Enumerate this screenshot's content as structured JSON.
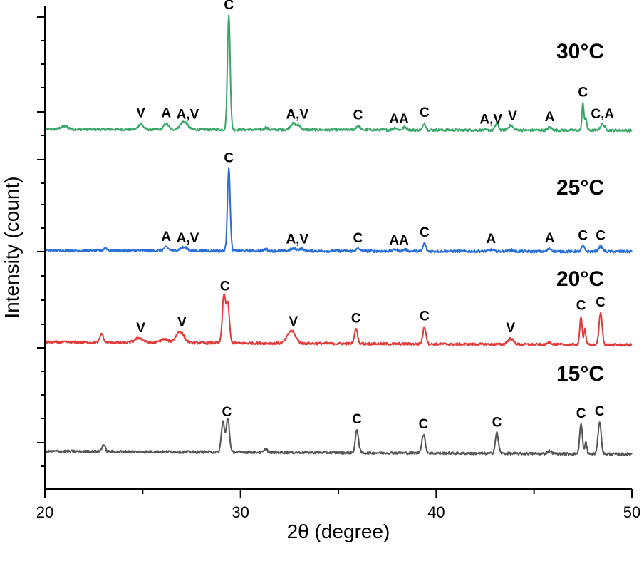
{
  "chart_data": {
    "type": "line",
    "xlabel": "2θ (degree)",
    "ylabel": "Intensity (count)",
    "xlim": [
      20,
      50
    ],
    "xticks": [
      20,
      30,
      40,
      50
    ],
    "y_units": "stacked, arbitrary offsets (top trace 0-100)",
    "series": [
      {
        "name": "30°C",
        "color": "#3aa66a",
        "baseline": 0,
        "peaks": [
          {
            "x": 21.0,
            "h": 2.5,
            "w": 0.2
          },
          {
            "x": 24.9,
            "h": 5,
            "w": 0.12
          },
          {
            "x": 26.2,
            "h": 5,
            "w": 0.12
          },
          {
            "x": 27.1,
            "h": 7,
            "w": 0.18
          },
          {
            "x": 29.4,
            "h": 100,
            "w": 0.07
          },
          {
            "x": 31.3,
            "h": 2,
            "w": 0.08
          },
          {
            "x": 32.7,
            "h": 5.5,
            "w": 0.15
          },
          {
            "x": 33.0,
            "h": 3,
            "w": 0.1
          },
          {
            "x": 36.0,
            "h": 3.5,
            "w": 0.1
          },
          {
            "x": 37.9,
            "h": 2,
            "w": 0.1
          },
          {
            "x": 38.4,
            "h": 2.5,
            "w": 0.1
          },
          {
            "x": 39.4,
            "h": 6,
            "w": 0.07
          },
          {
            "x": 43.1,
            "h": 6,
            "w": 0.08
          },
          {
            "x": 43.8,
            "h": 4,
            "w": 0.12
          },
          {
            "x": 45.8,
            "h": 2.5,
            "w": 0.1
          },
          {
            "x": 47.5,
            "h": 24,
            "w": 0.05
          },
          {
            "x": 47.65,
            "h": 10,
            "w": 0.05
          },
          {
            "x": 48.5,
            "h": 5,
            "w": 0.12
          }
        ],
        "labels": [
          {
            "x": 24.9,
            "text": "V"
          },
          {
            "x": 26.2,
            "text": "A"
          },
          {
            "x": 27.3,
            "text": "A,V"
          },
          {
            "x": 29.4,
            "text": "C"
          },
          {
            "x": 32.9,
            "text": "A,V"
          },
          {
            "x": 36.0,
            "text": "C"
          },
          {
            "x": 38.1,
            "text": "AA"
          },
          {
            "x": 39.4,
            "text": "C"
          },
          {
            "x": 42.8,
            "text": "A,V"
          },
          {
            "x": 43.9,
            "text": "V"
          },
          {
            "x": 45.8,
            "text": "A"
          },
          {
            "x": 47.5,
            "text": "C"
          },
          {
            "x": 48.5,
            "text": "C,A"
          }
        ]
      },
      {
        "name": "25°C",
        "color": "#2a6fd6",
        "baseline": -106,
        "peaks": [
          {
            "x": 23.1,
            "h": 2.5,
            "w": 0.08
          },
          {
            "x": 26.2,
            "h": 3,
            "w": 0.12
          },
          {
            "x": 27.1,
            "h": 3,
            "w": 0.18
          },
          {
            "x": 29.4,
            "h": 72,
            "w": 0.07
          },
          {
            "x": 31.3,
            "h": 1.5,
            "w": 0.08
          },
          {
            "x": 32.7,
            "h": 2,
            "w": 0.15
          },
          {
            "x": 33.1,
            "h": 2,
            "w": 0.1
          },
          {
            "x": 36.0,
            "h": 2,
            "w": 0.1
          },
          {
            "x": 37.9,
            "h": 1.5,
            "w": 0.1
          },
          {
            "x": 38.4,
            "h": 1.5,
            "w": 0.1
          },
          {
            "x": 39.4,
            "h": 7,
            "w": 0.07
          },
          {
            "x": 42.8,
            "h": 1.5,
            "w": 0.1
          },
          {
            "x": 43.8,
            "h": 1.5,
            "w": 0.1
          },
          {
            "x": 45.8,
            "h": 2.5,
            "w": 0.1
          },
          {
            "x": 47.5,
            "h": 4.5,
            "w": 0.08
          },
          {
            "x": 48.4,
            "h": 4.5,
            "w": 0.1
          }
        ],
        "labels": [
          {
            "x": 26.2,
            "text": "A"
          },
          {
            "x": 27.3,
            "text": "A,V"
          },
          {
            "x": 29.4,
            "text": "C"
          },
          {
            "x": 32.9,
            "text": "A,V"
          },
          {
            "x": 36.0,
            "text": "C"
          },
          {
            "x": 38.1,
            "text": "AA"
          },
          {
            "x": 39.4,
            "text": "C"
          },
          {
            "x": 42.8,
            "text": "A"
          },
          {
            "x": 45.8,
            "text": "A"
          },
          {
            "x": 47.5,
            "text": "C"
          },
          {
            "x": 48.4,
            "text": "C"
          }
        ]
      },
      {
        "name": "20°C",
        "color": "#e03c3c",
        "baseline": -191,
        "peaks": [
          {
            "x": 22.9,
            "h": 8,
            "w": 0.08
          },
          {
            "x": 24.8,
            "h": 4,
            "w": 0.2
          },
          {
            "x": 26.1,
            "h": 3,
            "w": 0.2
          },
          {
            "x": 26.9,
            "h": 10,
            "w": 0.2
          },
          {
            "x": 29.15,
            "h": 42,
            "w": 0.08
          },
          {
            "x": 29.35,
            "h": 34,
            "w": 0.08
          },
          {
            "x": 32.6,
            "h": 11,
            "w": 0.2
          },
          {
            "x": 35.9,
            "h": 13,
            "w": 0.08
          },
          {
            "x": 39.4,
            "h": 15,
            "w": 0.08
          },
          {
            "x": 43.8,
            "h": 5,
            "w": 0.15
          },
          {
            "x": 45.8,
            "h": 2,
            "w": 0.1
          },
          {
            "x": 47.4,
            "h": 25,
            "w": 0.06
          },
          {
            "x": 47.6,
            "h": 14,
            "w": 0.05
          },
          {
            "x": 48.4,
            "h": 28,
            "w": 0.08
          }
        ],
        "labels": [
          {
            "x": 24.9,
            "text": "V"
          },
          {
            "x": 27.0,
            "text": "V"
          },
          {
            "x": 29.2,
            "text": "C"
          },
          {
            "x": 32.7,
            "text": "V"
          },
          {
            "x": 35.9,
            "text": "C"
          },
          {
            "x": 39.4,
            "text": "C"
          },
          {
            "x": 43.8,
            "text": "V"
          },
          {
            "x": 47.4,
            "text": "C"
          },
          {
            "x": 48.4,
            "text": "C"
          }
        ]
      },
      {
        "name": "15°C",
        "color": "#555555",
        "baseline": -281,
        "peaks": [
          {
            "x": 23.0,
            "h": 6,
            "w": 0.08
          },
          {
            "x": 29.1,
            "h": 27,
            "w": 0.08
          },
          {
            "x": 29.35,
            "h": 30,
            "w": 0.08
          },
          {
            "x": 31.3,
            "h": 3,
            "w": 0.08
          },
          {
            "x": 35.95,
            "h": 20,
            "w": 0.08
          },
          {
            "x": 39.35,
            "h": 16,
            "w": 0.09
          },
          {
            "x": 43.1,
            "h": 18,
            "w": 0.08
          },
          {
            "x": 45.8,
            "h": 2.5,
            "w": 0.1
          },
          {
            "x": 47.4,
            "h": 26,
            "w": 0.07
          },
          {
            "x": 47.65,
            "h": 10,
            "w": 0.05
          },
          {
            "x": 48.35,
            "h": 28,
            "w": 0.08
          }
        ],
        "labels": [
          {
            "x": 29.3,
            "text": "C"
          },
          {
            "x": 35.95,
            "text": "C"
          },
          {
            "x": 39.35,
            "text": "C"
          },
          {
            "x": 43.1,
            "text": "C"
          },
          {
            "x": 47.4,
            "text": "C"
          },
          {
            "x": 48.35,
            "text": "C"
          }
        ]
      }
    ]
  }
}
